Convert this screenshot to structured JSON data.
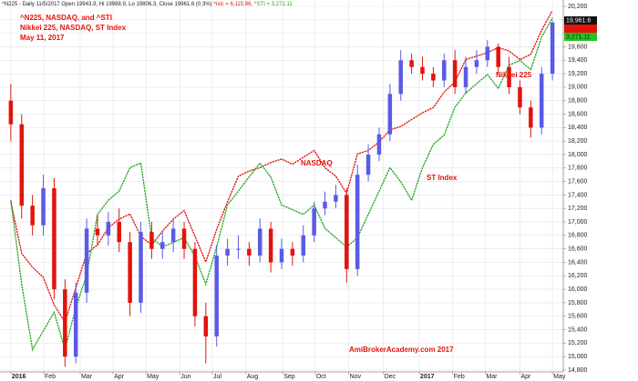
{
  "chart_data": {
    "type": "candlestick",
    "header": {
      "main": "^N225 - Daily 11/5/2017 Open 19943.9, Hi 19988.9, Lo 19806.3, Close 19961.6 (0.3%)",
      "nasdaq": "^ixic = 6,115.96,",
      "sti": "^STI = 3,271.11"
    },
    "title": [
      "^N225, NASDAQ, and ^STI",
      "Nikkei 225, NASDAQ, ST Index",
      "May 11, 2017"
    ],
    "annotations": [
      "NASDAQ",
      "ST Index",
      "Nikkei 225"
    ],
    "footer": "AmiBrokerAcademy.com  2017",
    "last_labels": [
      "19,961.6",
      "3,271.11"
    ],
    "up_color": "#5a5ae6",
    "down_color": "#e3120b",
    "open": [
      18800,
      18450,
      17240,
      16950,
      17500,
      16000,
      15000,
      15950,
      16900,
      16800,
      17000,
      16700,
      15800,
      16850,
      16600,
      16700,
      16900,
      16600,
      15600,
      15300,
      16500,
      16600,
      16600,
      16500,
      16900,
      16400,
      16600,
      16500,
      16800,
      17200,
      17300,
      17400,
      16300,
      17700,
      18000,
      18300,
      18900,
      19400,
      19300,
      19200,
      19100,
      19400,
      19000,
      19300,
      19400,
      19600,
      19300,
      19000,
      18700,
      18400,
      19200
    ],
    "high": [
      19050,
      18600,
      17400,
      17700,
      17650,
      16150,
      16100,
      17050,
      17100,
      17150,
      17200,
      16850,
      17000,
      17000,
      16850,
      17050,
      17000,
      16700,
      15800,
      16650,
      16750,
      16800,
      16700,
      17050,
      17000,
      16750,
      16700,
      16950,
      17300,
      17450,
      17550,
      17500,
      17850,
      18150,
      18400,
      19050,
      19550,
      19500,
      19450,
      19300,
      19500,
      19550,
      19450,
      19550,
      19700,
      19650,
      19450,
      19100,
      18800,
      19300,
      19990
    ],
    "low": [
      18200,
      17050,
      16800,
      16800,
      15850,
      14850,
      14900,
      15800,
      16650,
      16650,
      16550,
      15600,
      15650,
      16450,
      16450,
      16550,
      16450,
      15450,
      14900,
      15150,
      16350,
      16450,
      16350,
      16400,
      16250,
      16300,
      16350,
      16400,
      16700,
      17100,
      17200,
      16100,
      16200,
      17600,
      17900,
      18200,
      18800,
      19200,
      19100,
      19000,
      19000,
      18900,
      18900,
      19200,
      19300,
      19200,
      18900,
      18600,
      18250,
      18300,
      19100
    ],
    "close": [
      18450,
      17240,
      16950,
      17500,
      16000,
      15000,
      15950,
      16900,
      16800,
      17000,
      16700,
      15800,
      16850,
      16600,
      16700,
      16900,
      16600,
      15600,
      15300,
      16500,
      16600,
      16600,
      16500,
      16900,
      16400,
      16600,
      16500,
      16800,
      17200,
      17300,
      17400,
      16300,
      17700,
      18000,
      18300,
      18900,
      19400,
      19300,
      19200,
      19100,
      19400,
      19000,
      19300,
      19400,
      19600,
      19300,
      19000,
      18700,
      18400,
      19200,
      19960
    ],
    "overlays": [
      {
        "color": "#e3120b",
        "lim": [
          4020,
          6140
        ],
        "values": [
          5000,
          4700,
          4620,
          4560,
          4400,
          4300,
          4500,
          4700,
          4750,
          4850,
          4900,
          4930,
          4800,
          4750,
          4830,
          4900,
          4950,
          4800,
          4650,
          4840,
          5000,
          5150,
          5180,
          5200,
          5230,
          5250,
          5220,
          5260,
          5300,
          5200,
          5150,
          5050,
          5280,
          5300,
          5350,
          5420,
          5440,
          5480,
          5520,
          5550,
          5640,
          5700,
          5830,
          5850,
          5870,
          5900,
          5880,
          5830,
          5860,
          6000,
          6116
        ]
      },
      {
        "color": "#22a822",
        "lim": [
          2516,
          3296
        ],
        "values": [
          2880,
          2700,
          2560,
          2600,
          2640,
          2560,
          2650,
          2720,
          2850,
          2880,
          2900,
          2950,
          2960,
          2800,
          2780,
          2790,
          2800,
          2760,
          2700,
          2780,
          2870,
          2900,
          2930,
          2960,
          2930,
          2870,
          2860,
          2850,
          2870,
          2820,
          2800,
          2780,
          2800,
          2850,
          2900,
          2950,
          2920,
          2880,
          2950,
          3000,
          3020,
          3080,
          3110,
          3130,
          3150,
          3120,
          3170,
          3180,
          3160,
          3230,
          3271
        ]
      }
    ],
    "xlim": [
      -1,
      51
    ],
    "xticks": [
      {
        "value": 0,
        "label": "2016"
      },
      {
        "value": 3.04,
        "label": "Feb"
      },
      {
        "value": 6.4,
        "label": "Mar"
      },
      {
        "value": 9.44,
        "label": "Apr"
      },
      {
        "value": 12.47,
        "label": "May"
      },
      {
        "value": 15.6,
        "label": "Jun"
      },
      {
        "value": 18.6,
        "label": "Jul"
      },
      {
        "value": 21.7,
        "label": "Aug"
      },
      {
        "value": 25.1,
        "label": "Sep"
      },
      {
        "value": 28.1,
        "label": "Oct"
      },
      {
        "value": 31.2,
        "label": "Nov"
      },
      {
        "value": 34.4,
        "label": "Dec"
      },
      {
        "value": 37.7,
        "label": "2017"
      },
      {
        "value": 40.8,
        "label": "Feb"
      },
      {
        "value": 43.8,
        "label": "Mar"
      },
      {
        "value": 47,
        "label": "Apr"
      },
      {
        "value": 50,
        "label": "May"
      }
    ],
    "ylim": [
      14800,
      20200
    ],
    "yticks": [
      {
        "value": 14800,
        "label": "14,800"
      },
      {
        "value": 15000,
        "label": "15,000"
      },
      {
        "value": 15200,
        "label": "15,200"
      },
      {
        "value": 15400,
        "label": "15,400"
      },
      {
        "value": 15600,
        "label": "15,600"
      },
      {
        "value": 15800,
        "label": "15,800"
      },
      {
        "value": 16000,
        "label": "16,000"
      },
      {
        "value": 16200,
        "label": "16,200"
      },
      {
        "value": 16400,
        "label": "16,400"
      },
      {
        "value": 16600,
        "label": "16,600"
      },
      {
        "value": 16800,
        "label": "16,800"
      },
      {
        "value": 17000,
        "label": "17,000"
      },
      {
        "value": 17200,
        "label": "17,200"
      },
      {
        "value": 17400,
        "label": "17,400"
      },
      {
        "value": 17600,
        "label": "17,600"
      },
      {
        "value": 17800,
        "label": "17,800"
      },
      {
        "value": 18000,
        "label": "18,000"
      },
      {
        "value": 18200,
        "label": "18,200"
      },
      {
        "value": 18400,
        "label": "18,400"
      },
      {
        "value": 18600,
        "label": "18,600"
      },
      {
        "value": 18800,
        "label": "18,800"
      },
      {
        "value": 19000,
        "label": "19,000"
      },
      {
        "value": 19200,
        "label": "19,200"
      },
      {
        "value": 19400,
        "label": "19,400"
      },
      {
        "value": 19600,
        "label": "19,600"
      },
      {
        "value": 19800,
        "label": "19,800"
      },
      {
        "value": 20000,
        "label": "20,000"
      },
      {
        "value": 20200,
        "label": "20,200"
      }
    ]
  }
}
